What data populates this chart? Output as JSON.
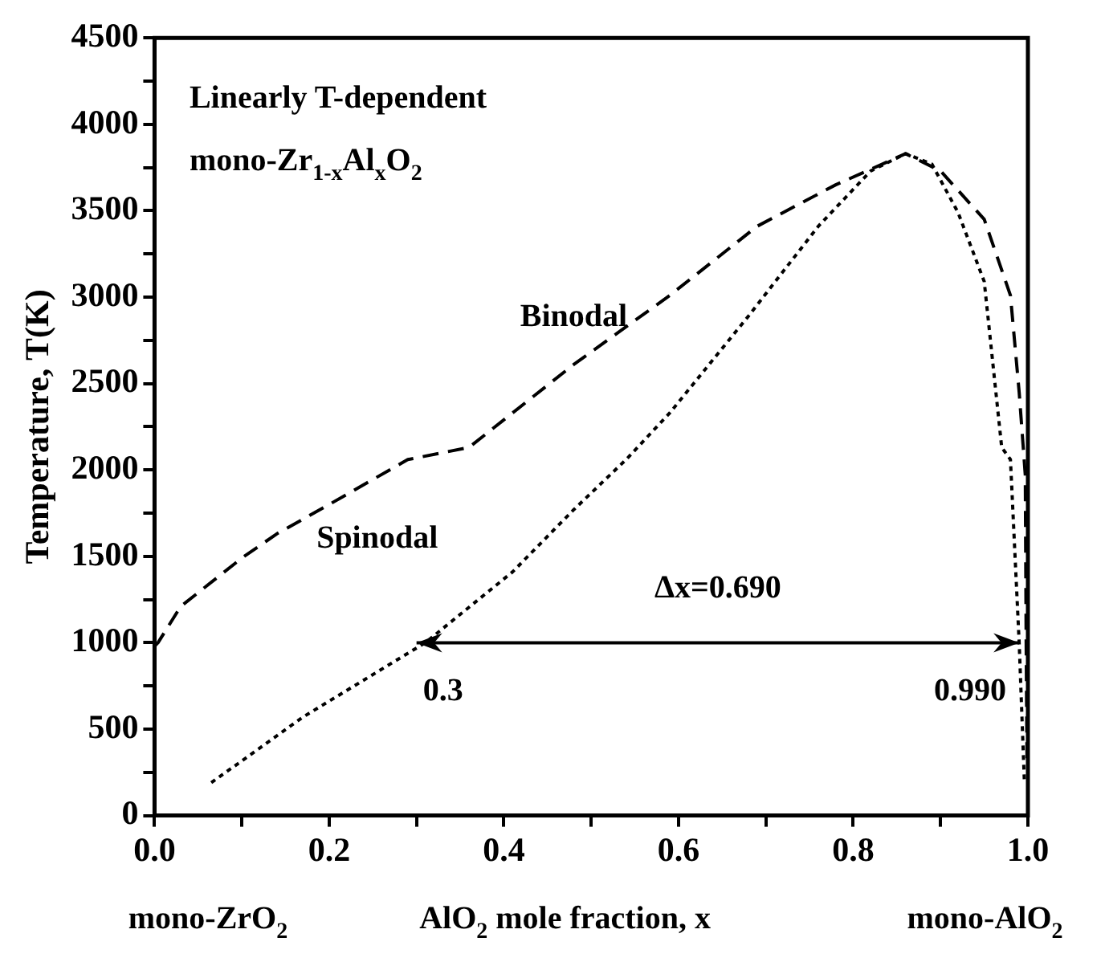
{
  "chart_data": {
    "type": "line",
    "xlabel": "AlO$_{2}$ mole fraction, x",
    "ylabel": "Temperature, T(K)",
    "xlim": [
      0,
      1.0
    ],
    "xticks": [
      {
        "value": 0,
        "label": "0.0"
      },
      {
        "value": 0.1,
        "label": null
      },
      {
        "value": 0.2,
        "label": "0.2"
      },
      {
        "value": 0.3,
        "label": null
      },
      {
        "value": 0.4,
        "label": "0.4"
      },
      {
        "value": 0.5,
        "label": null
      },
      {
        "value": 0.6,
        "label": "0.6"
      },
      {
        "value": 0.7,
        "label": null
      },
      {
        "value": 0.8,
        "label": "0.8"
      },
      {
        "value": 0.9,
        "label": null
      },
      {
        "value": 1.0,
        "label": "1.0"
      }
    ],
    "ylim": [
      0,
      4500
    ],
    "yticks": [
      0,
      {
        "value": 250,
        "label": null
      },
      500,
      {
        "value": 750,
        "label": null
      },
      1000,
      {
        "value": 1250,
        "label": null
      },
      1500,
      {
        "value": 1750,
        "label": null
      },
      2000,
      {
        "value": 2250,
        "label": null
      },
      2500,
      {
        "value": 2750,
        "label": null
      },
      3000,
      {
        "value": 3250,
        "label": null
      },
      3500,
      {
        "value": 3750,
        "label": null
      },
      4000,
      {
        "value": 4250,
        "label": null
      },
      4500
    ],
    "grid": false,
    "legend": false,
    "marker": "none",
    "series": [
      {
        "color": "#000000",
        "line_style": "dashed",
        "x": [
          0.0,
          0.004,
          0.03,
          0.1,
          0.14,
          0.2,
          0.29,
          0.36,
          0.48,
          0.59,
          0.69,
          0.78,
          0.86,
          0.9,
          0.95,
          0.98,
          0.99,
          0.997,
          0.998,
          0.999
        ],
        "values": [
          980,
          1000,
          1210,
          1490,
          1630,
          1800,
          2060,
          2130,
          2610,
          3010,
          3410,
          3650,
          3830,
          3730,
          3450,
          3010,
          2450,
          1970,
          1000,
          300
        ]
      },
      {
        "color": "#000000",
        "line_style": "dotted",
        "x": [
          0.065,
          0.17,
          0.31,
          0.41,
          0.48,
          0.54,
          0.59,
          0.68,
          0.76,
          0.82,
          0.86,
          0.89,
          0.92,
          0.95,
          0.96,
          0.97,
          0.98,
          0.99,
          0.996
        ],
        "values": [
          190,
          570,
          1000,
          1410,
          1770,
          2060,
          2330,
          2890,
          3410,
          3730,
          3830,
          3770,
          3490,
          3090,
          2610,
          2130,
          2060,
          1000,
          190
        ]
      }
    ],
    "annotations": [
      "Linearly T-dependent",
      "mono-Zr$_{1-x}$Al$_{x}$O$_{2}$",
      "Binodal",
      "Spinodal",
      "Δx=0.690",
      {
        "text": "0.3",
        "x": 0.3,
        "y": 1000
      },
      {
        "text": "0.990",
        "x": 0.99,
        "y": 1000
      },
      "mono-ZrO$_{2}$",
      "mono-AlO$_{2}$"
    ]
  }
}
